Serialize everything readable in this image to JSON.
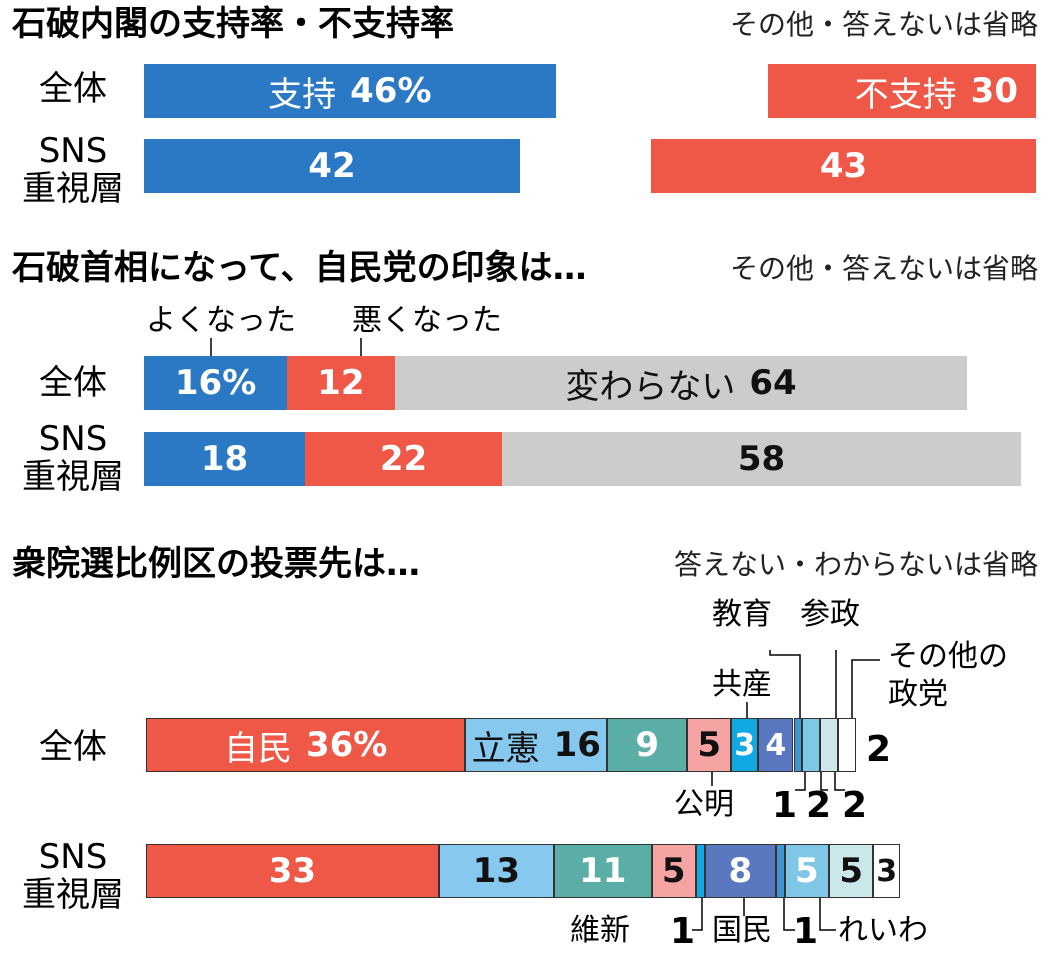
{
  "sections": [
    {
      "title": "石破内閣の支持率・不支持率",
      "note": "その他・答えないは省略"
    },
    {
      "title": "石破首相になって、自民党の印象は…",
      "note": "その他・答えないは省略"
    },
    {
      "title": "衆院選比例区の投票先は…",
      "note": "答えない・わからないは省略"
    }
  ],
  "rows": {
    "all": "全体",
    "sns1": "SNS",
    "sns2": "重視層"
  },
  "colors": {
    "blue": "#2b78c5",
    "red": "#ef5747",
    "gray": "#cccccc"
  },
  "chart_data": [
    {
      "type": "bar",
      "title": "石破内閣の支持率・不支持率",
      "categories": [
        "全体",
        "SNS重視層"
      ],
      "series": [
        {
          "name": "支持",
          "values": [
            46,
            42
          ],
          "labels": [
            "46%",
            "42"
          ],
          "color": "#2b78c5"
        },
        {
          "name": "不支持",
          "values": [
            30,
            43
          ],
          "labels": [
            "30",
            "43"
          ],
          "color": "#ef5747"
        }
      ]
    },
    {
      "type": "bar",
      "title": "石破首相になって、自民党の印象は…",
      "categories": [
        "全体",
        "SNS重視層"
      ],
      "series": [
        {
          "name": "よくなった",
          "values": [
            16,
            18
          ],
          "labels": [
            "16%",
            "18"
          ],
          "color": "#2b78c5"
        },
        {
          "name": "悪くなった",
          "values": [
            12,
            22
          ],
          "labels": [
            "12",
            "22"
          ],
          "color": "#ef5747"
        },
        {
          "name": "変わらない",
          "values": [
            64,
            58
          ],
          "labels": [
            "64",
            "58"
          ],
          "color": "#cccccc"
        }
      ]
    },
    {
      "type": "bar",
      "title": "衆院選比例区の投票先は…",
      "categories": [
        "全体",
        "SNS重視層"
      ],
      "series": [
        {
          "name": "自民",
          "values": [
            36,
            33
          ],
          "labels": [
            "36%",
            "33"
          ],
          "color": "#ef5747"
        },
        {
          "name": "立憲",
          "values": [
            16,
            13
          ],
          "labels": [
            "16",
            "13"
          ],
          "color": "#86c8ee"
        },
        {
          "name": "維新",
          "values": [
            9,
            11
          ],
          "labels": [
            "9",
            "11"
          ],
          "color": "#5aaea6"
        },
        {
          "name": "公明",
          "values": [
            5,
            5
          ],
          "labels": [
            "5",
            "5"
          ],
          "color": "#f6a3a3"
        },
        {
          "name": "共産",
          "values": [
            3,
            1
          ],
          "labels": [
            "3",
            "1"
          ],
          "color": "#11a8e4"
        },
        {
          "name": "国民",
          "values": [
            4,
            8
          ],
          "labels": [
            "4",
            "8"
          ],
          "color": "#5a78c0"
        },
        {
          "name": "教育",
          "values": [
            1,
            1
          ],
          "labels": [
            "1",
            "1"
          ],
          "color": "#3f95cf"
        },
        {
          "name": "れいわ",
          "values": [
            2,
            5
          ],
          "labels": [
            "2",
            "5"
          ],
          "color": "#7ec7e6"
        },
        {
          "name": "参政",
          "values": [
            2,
            5
          ],
          "labels": [
            "2",
            "5"
          ],
          "color": "#cce7ea"
        },
        {
          "name": "その他の政党",
          "values": [
            2,
            3
          ],
          "labels": [
            "2",
            "3"
          ],
          "color": "#ffffff"
        }
      ]
    }
  ],
  "callouts": {
    "yoku": "よくなった",
    "waruku": "悪くなった",
    "kyoiku": "教育",
    "sansei": "参政",
    "sonota1": "その他の",
    "sonota2": "政党",
    "kyosan": "共産",
    "komei": "公明",
    "ishin": "維新",
    "kokumin": "国民",
    "reiwa": "れいわ",
    "n_kyoiku_all": "1",
    "n_reiwa_all": "2",
    "n_sansei_all": "2",
    "n_sonota_all": "2",
    "n_kyosan_sns": "1",
    "n_kyoiku_sns": "1"
  }
}
